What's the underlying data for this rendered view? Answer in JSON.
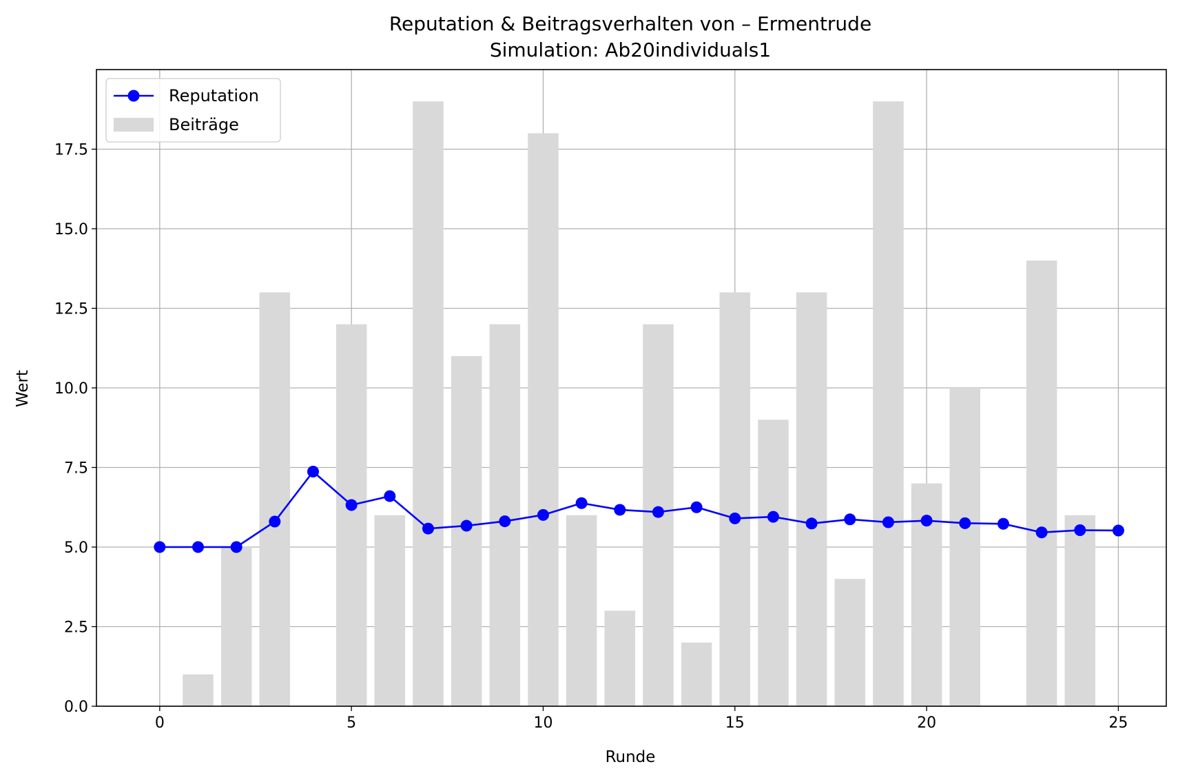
{
  "chart_data": {
    "type": "bar",
    "title": "Reputation & Beitragsverhalten von – Ermentrude",
    "subtitle": "Simulation: Ab20individuals1",
    "xlabel": "Runde",
    "ylabel": "Wert",
    "xlim": [
      -1.65,
      26.25
    ],
    "ylim": [
      0,
      20
    ],
    "x_ticks": [
      0,
      5,
      10,
      15,
      20,
      25
    ],
    "y_ticks": [
      0.0,
      2.5,
      5.0,
      7.5,
      10.0,
      12.5,
      15.0,
      17.5
    ],
    "x_tick_labels": [
      "0",
      "5",
      "10",
      "15",
      "20",
      "25"
    ],
    "y_tick_labels": [
      "0.0",
      "2.5",
      "5.0",
      "7.5",
      "10.0",
      "12.5",
      "15.0",
      "17.5"
    ],
    "grid": true,
    "legend_position": "top-left",
    "x": [
      0,
      1,
      2,
      3,
      4,
      5,
      6,
      7,
      8,
      9,
      10,
      11,
      12,
      13,
      14,
      15,
      16,
      17,
      18,
      19,
      20,
      21,
      22,
      23,
      24,
      25
    ],
    "series": [
      {
        "name": "Reputation",
        "kind": "line",
        "color": "#0000ff",
        "values": [
          5.0,
          5.0,
          5.0,
          5.8,
          7.37,
          6.32,
          6.6,
          5.58,
          5.67,
          5.81,
          6.01,
          6.38,
          6.17,
          6.1,
          6.25,
          5.9,
          5.95,
          5.74,
          5.87,
          5.78,
          5.83,
          5.75,
          5.73,
          5.46,
          5.53,
          5.52
        ]
      },
      {
        "name": "Beiträge",
        "kind": "bar",
        "color": "#d9d9d9",
        "values": [
          0,
          1,
          5,
          13,
          0,
          12,
          6,
          19,
          11,
          12,
          18,
          6,
          3,
          12,
          2,
          13,
          9,
          13,
          4,
          19,
          7,
          10,
          0,
          14,
          6,
          0
        ]
      }
    ]
  }
}
